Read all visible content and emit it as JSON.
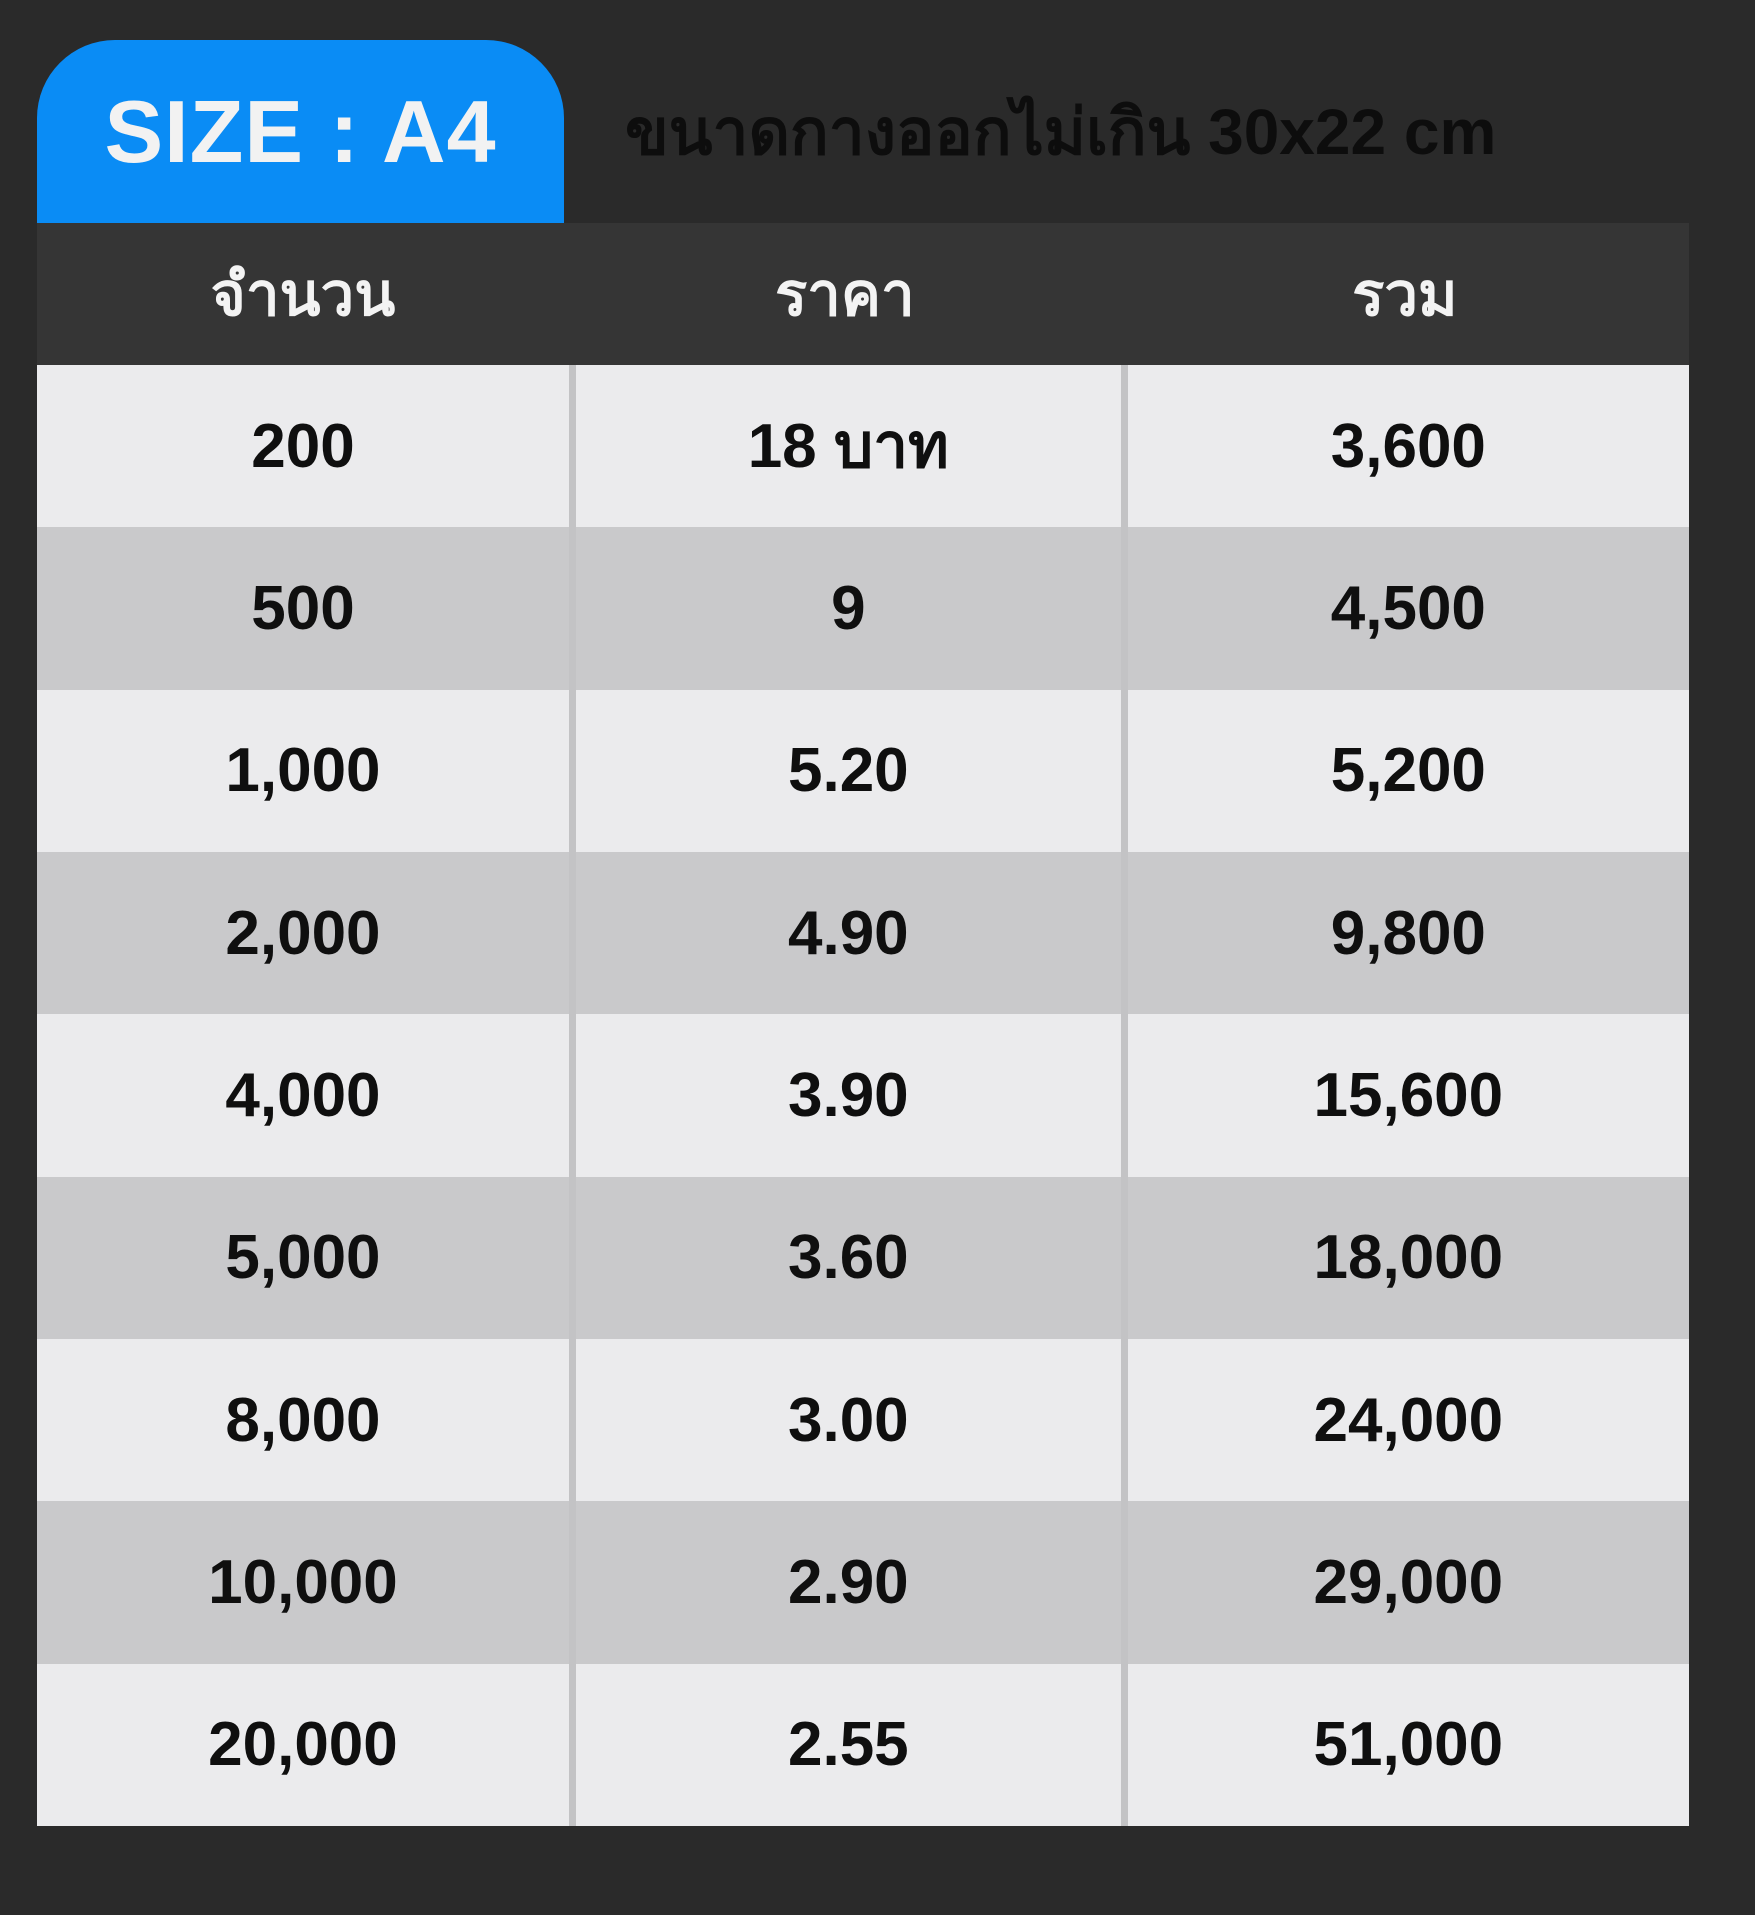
{
  "badge": {
    "label": "SIZE : A4",
    "color": "#0a8cf5"
  },
  "subtitle": "ขนาดกางออกไม่เกิน 30x22 cm",
  "table": {
    "headers": [
      "จำนวน",
      "ราคา",
      "รวม"
    ],
    "rows": [
      [
        "200",
        "18 บาท",
        "3,600"
      ],
      [
        "500",
        "9",
        "4,500"
      ],
      [
        "1,000",
        "5.20",
        "5,200"
      ],
      [
        "2,000",
        "4.90",
        "9,800"
      ],
      [
        "4,000",
        "3.90",
        "15,600"
      ],
      [
        "5,000",
        "3.60",
        "18,000"
      ],
      [
        "8,000",
        "3.00",
        "24,000"
      ],
      [
        "10,000",
        "2.90",
        "29,000"
      ],
      [
        "20,000",
        "2.55",
        "51,000"
      ]
    ]
  },
  "colors": {
    "page_background": "#2a2a2a",
    "badge_blue": "#0a8cf5",
    "header_background": "#353535",
    "row_light": "#ebebed",
    "row_dark": "#c9c9cb",
    "separator": "#c3c3c5",
    "cell_text": "#0f0f0f",
    "header_text": "#f3f3f3",
    "subtitle_text": "#0d0d0d"
  },
  "chart_data": {
    "type": "table",
    "title": "SIZE : A4",
    "subtitle": "ขนาดกางออกไม่เกิน 30x22 cm",
    "columns": [
      "จำนวน",
      "ราคา",
      "รวม"
    ],
    "rows": [
      {
        "quantity": 200,
        "price_label": "18 บาท",
        "price": 18,
        "total": 3600
      },
      {
        "quantity": 500,
        "price_label": "9",
        "price": 9,
        "total": 4500
      },
      {
        "quantity": 1000,
        "price_label": "5.20",
        "price": 5.2,
        "total": 5200
      },
      {
        "quantity": 2000,
        "price_label": "4.90",
        "price": 4.9,
        "total": 9800
      },
      {
        "quantity": 4000,
        "price_label": "3.90",
        "price": 3.9,
        "total": 15600
      },
      {
        "quantity": 5000,
        "price_label": "3.60",
        "price": 3.6,
        "total": 18000
      },
      {
        "quantity": 8000,
        "price_label": "3.00",
        "price": 3.0,
        "total": 24000
      },
      {
        "quantity": 10000,
        "price_label": "2.90",
        "price": 2.9,
        "total": 29000
      },
      {
        "quantity": 20000,
        "price_label": "2.55",
        "price": 2.55,
        "total": 51000
      }
    ],
    "layout": {
      "alternating_row_shading": true,
      "column_separators_in_body_only": true
    }
  }
}
